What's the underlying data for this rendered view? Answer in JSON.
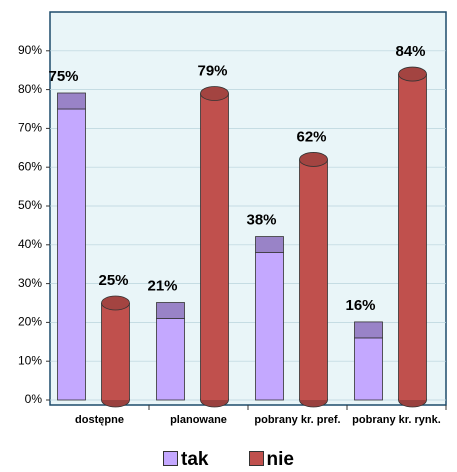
{
  "chart_data": {
    "type": "bar3d",
    "categories": [
      "dostępne",
      "planowane",
      "pobrany kr. pref.",
      "pobrany kr. rynk."
    ],
    "series": [
      {
        "name": "tak",
        "color": "#c4a8ff",
        "values": [
          75,
          21,
          38,
          16
        ],
        "value_labels": [
          "75%",
          "21%",
          "38%",
          "16%"
        ]
      },
      {
        "name": "nie",
        "color": "#c0504d",
        "values": [
          25,
          79,
          62,
          84
        ],
        "value_labels": [
          "25%",
          "79%",
          "62%",
          "84%"
        ]
      }
    ],
    "ylim": [
      0,
      100
    ],
    "yticks": [
      {
        "value": 0,
        "label": "0%"
      },
      {
        "value": 10,
        "label": "10%"
      },
      {
        "value": 20,
        "label": "20%"
      },
      {
        "value": 30,
        "label": "30%"
      },
      {
        "value": 40,
        "label": "40%"
      },
      {
        "value": 50,
        "label": "50%"
      },
      {
        "value": 60,
        "label": "60%"
      },
      {
        "value": 70,
        "label": "70%"
      },
      {
        "value": 80,
        "label": "80%"
      },
      {
        "value": 90,
        "label": "90%"
      }
    ],
    "grid": true
  }
}
